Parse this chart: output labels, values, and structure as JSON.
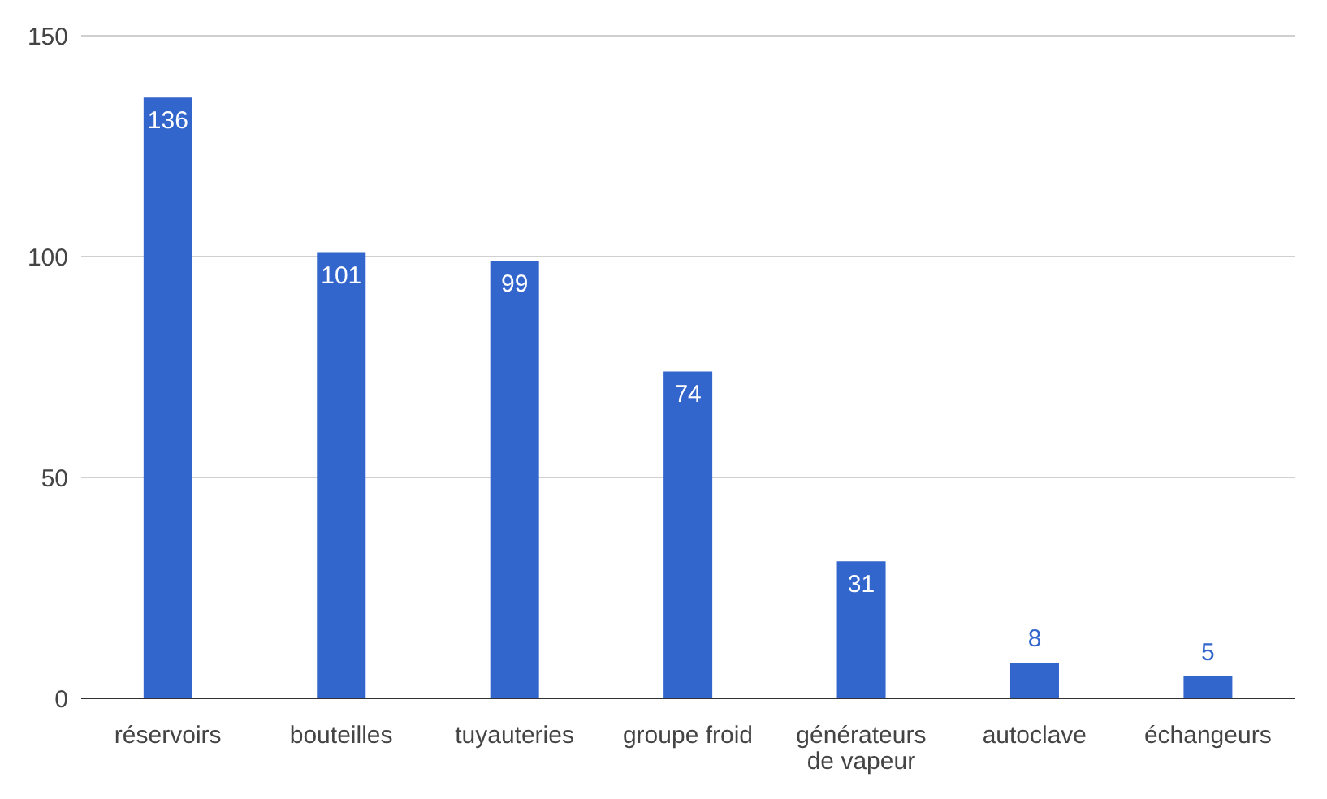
{
  "chart_data": {
    "type": "bar",
    "categories": [
      "réservoirs",
      "bouteilles",
      "tuyauteries",
      "groupe froid",
      "générateurs de vapeur",
      "autoclave",
      "échangeurs"
    ],
    "values": [
      136,
      101,
      99,
      74,
      31,
      8,
      5
    ],
    "color": "#3366cc",
    "ylim": [
      0,
      150
    ],
    "yticks": [
      0,
      50,
      100,
      150
    ],
    "grid": "y",
    "data_labels": true
  }
}
